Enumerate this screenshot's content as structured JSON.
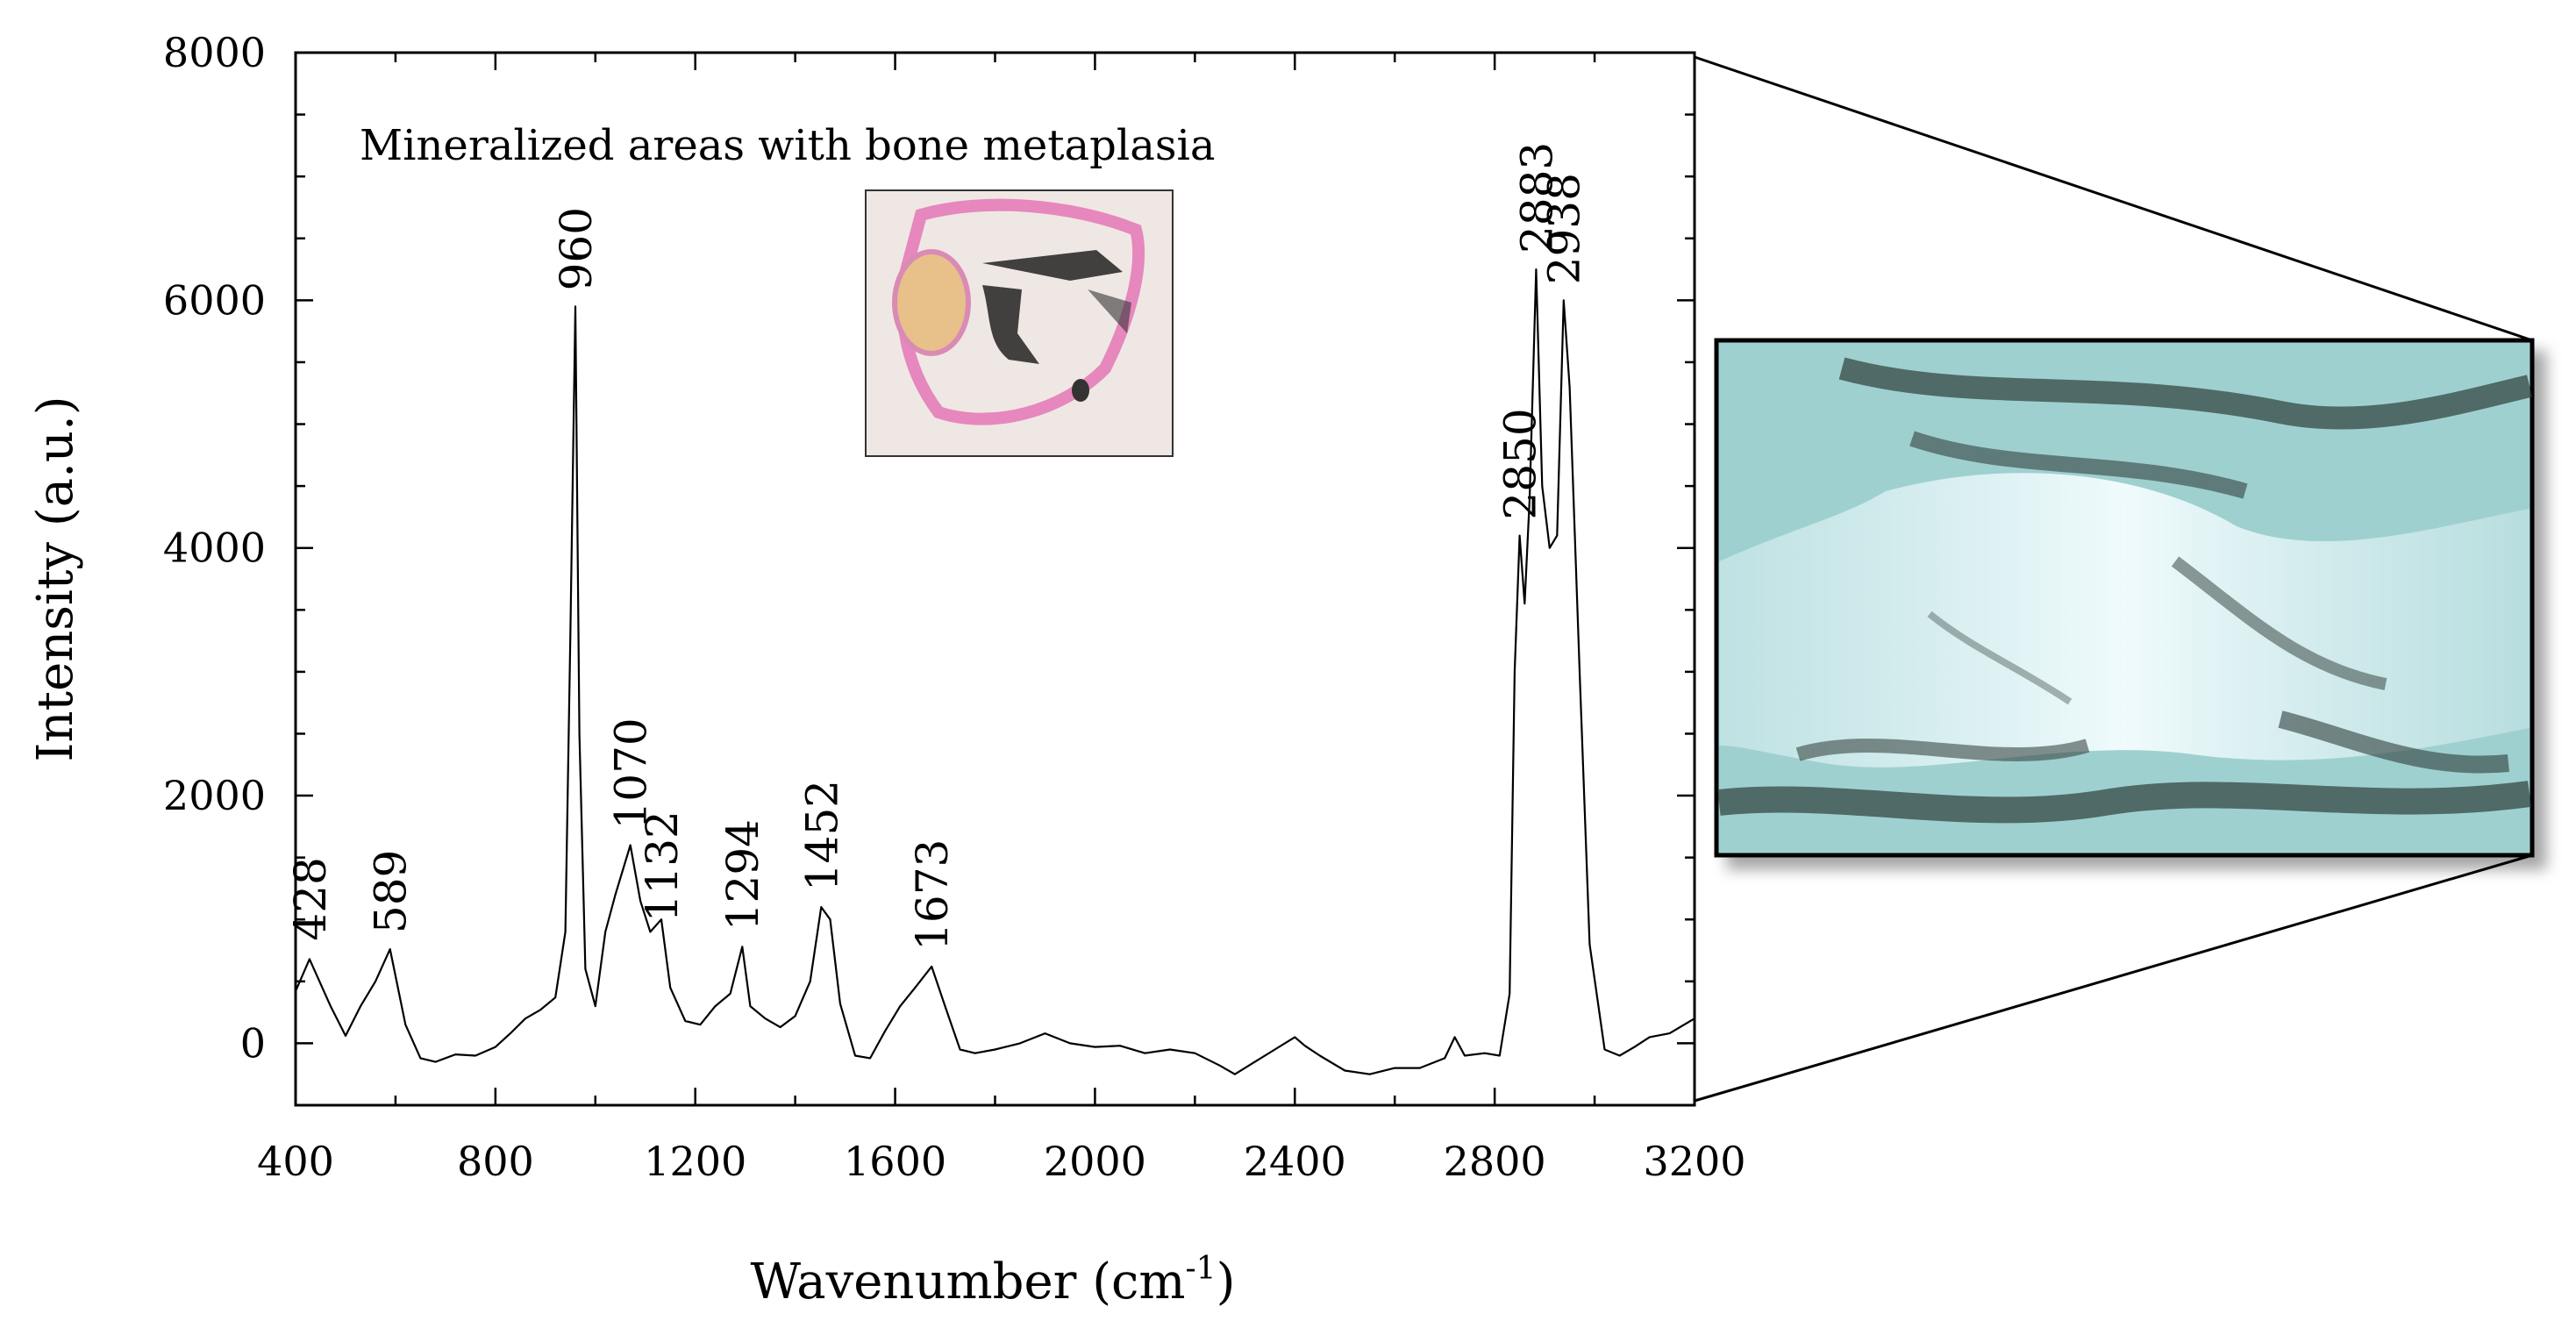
{
  "chart_data": {
    "type": "line",
    "xlabel": "Wavenumber (cm",
    "xlabel_sup": "-1",
    "xlabel_close": ")",
    "ylabel": "Intensity (a.u.)",
    "xlim": [
      400,
      3200
    ],
    "ylim": [
      -500,
      8000
    ],
    "x_ticks": [
      400,
      800,
      1200,
      1600,
      2000,
      2400,
      2800,
      3200
    ],
    "y_ticks": [
      0,
      2000,
      4000,
      6000,
      8000
    ],
    "grid": false,
    "annotation": "Mineralized areas with bone metaplasia",
    "peak_labels": [
      {
        "label": "428",
        "x": 428,
        "y": 700
      },
      {
        "label": "589",
        "x": 589,
        "y": 760
      },
      {
        "label": "960",
        "x": 960,
        "y": 5950
      },
      {
        "label": "1070",
        "x": 1070,
        "y": 1600
      },
      {
        "label": "1132",
        "x": 1132,
        "y": 850
      },
      {
        "label": "1294",
        "x": 1294,
        "y": 780
      },
      {
        "label": "1452",
        "x": 1452,
        "y": 1100
      },
      {
        "label": "1673",
        "x": 1673,
        "y": 620
      },
      {
        "label": "2850",
        "x": 2850,
        "y": 4100
      },
      {
        "label": "2883",
        "x": 2883,
        "y": 6250
      },
      {
        "label": "2938",
        "x": 2938,
        "y": 6000
      }
    ],
    "series": [
      {
        "x": [
          400,
          428,
          470,
          500,
          530,
          560,
          589,
          620,
          650,
          680,
          720,
          760,
          800,
          830,
          860,
          890,
          920,
          940,
          950,
          960,
          968,
          980,
          1000,
          1020,
          1040,
          1070,
          1090,
          1110,
          1132,
          1150,
          1180,
          1210,
          1240,
          1270,
          1294,
          1310,
          1340,
          1370,
          1400,
          1430,
          1452,
          1470,
          1490,
          1520,
          1550,
          1580,
          1610,
          1640,
          1673,
          1700,
          1730,
          1760,
          1800,
          1850,
          1900,
          1950,
          2000,
          2050,
          2100,
          2150,
          2200,
          2250,
          2280,
          2320,
          2360,
          2400,
          2420,
          2450,
          2500,
          2550,
          2600,
          2650,
          2700,
          2720,
          2740,
          2780,
          2810,
          2830,
          2840,
          2850,
          2860,
          2870,
          2883,
          2895,
          2910,
          2925,
          2938,
          2950,
          2970,
          2990,
          3020,
          3050,
          3080,
          3110,
          3150,
          3200
        ],
        "y": [
          420,
          680,
          300,
          60,
          300,
          500,
          760,
          150,
          -120,
          -150,
          -90,
          -100,
          -30,
          80,
          200,
          270,
          370,
          900,
          3300,
          5950,
          2500,
          600,
          300,
          900,
          1200,
          1600,
          1150,
          900,
          1000,
          450,
          180,
          150,
          300,
          400,
          780,
          300,
          200,
          130,
          220,
          500,
          1100,
          1000,
          320,
          -100,
          -120,
          100,
          300,
          450,
          620,
          300,
          -50,
          -80,
          -50,
          0,
          80,
          0,
          -30,
          -20,
          -80,
          -50,
          -80,
          -180,
          -250,
          -150,
          -50,
          50,
          -20,
          -100,
          -220,
          -250,
          -200,
          -200,
          -120,
          50,
          -100,
          -80,
          -100,
          400,
          3000,
          4100,
          3550,
          4400,
          6250,
          4500,
          4000,
          4100,
          6000,
          5300,
          3000,
          800,
          -50,
          -100,
          -30,
          50,
          80,
          200
        ]
      }
    ]
  },
  "insets": {
    "histology_thumbnail": "histology-section-image",
    "micrograph": "optical-micrograph-image"
  }
}
